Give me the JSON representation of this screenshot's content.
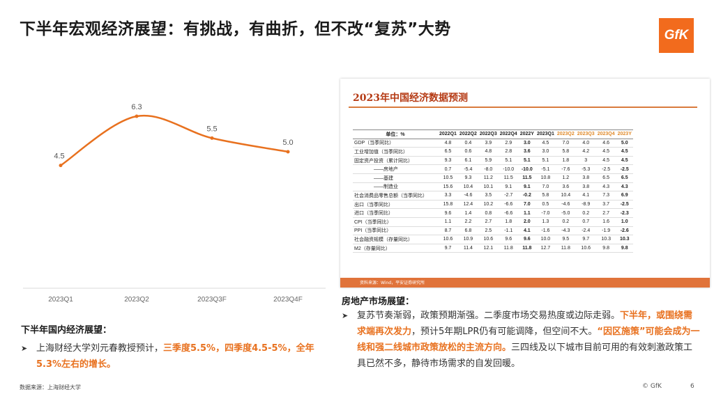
{
  "title": "下半年宏观经济展望：有挑战，有曲折，但不改“复苏”大势",
  "logo": "GfK",
  "chart_data": {
    "type": "line",
    "categories": [
      "2023Q1",
      "2023Q2",
      "2023Q3F",
      "2023Q4F"
    ],
    "values": [
      4.5,
      6.3,
      5.5,
      5.0
    ],
    "color": "#e8711f",
    "ylim": [
      0,
      7.5
    ]
  },
  "left_section": {
    "heading": "下半年国内经济展望：",
    "bullet_plain": "上海财经大学刘元春教授预计，",
    "bullet_highlight": "三季度5.5%，四季度4.5-5%，全年5.3%左右的增长。"
  },
  "table": {
    "title": "2023年中国经济数据预测",
    "headers": [
      "单位：%",
      "2022Q1",
      "2022Q2",
      "2022Q3",
      "2022Q4",
      "2022Y",
      "2023Q1",
      "2023Q2",
      "2023Q3",
      "2023Q4",
      "2023Y"
    ],
    "forecast_color": "#e08a2a",
    "rows": [
      [
        "GDP（当季同比）",
        "4.8",
        "0.4",
        "3.9",
        "2.9",
        "3.0",
        "4.5",
        "7.0",
        "4.0",
        "4.6",
        "5.0"
      ],
      [
        "工业增加值（当季同比）",
        "6.5",
        "0.6",
        "4.8",
        "2.8",
        "3.6",
        "3.0",
        "5.8",
        "4.2",
        "4.5",
        "4.5"
      ],
      [
        "固定资产投资（累计同比）",
        "9.3",
        "6.1",
        "5.9",
        "5.1",
        "5.1",
        "5.1",
        "1.8",
        "3",
        "4.5",
        "4.5"
      ],
      [
        "——房地产",
        "0.7",
        "-5.4",
        "-8.0",
        "-10.0",
        "-10.0",
        "-5.1",
        "-7.6",
        "-5.3",
        "-2.5",
        "-2.5"
      ],
      [
        "——基建",
        "10.5",
        "9.3",
        "11.2",
        "11.5",
        "11.5",
        "10.8",
        "1.2",
        "3.8",
        "6.5",
        "6.5"
      ],
      [
        "——制造业",
        "15.6",
        "10.4",
        "10.1",
        "9.1",
        "9.1",
        "7.0",
        "3.6",
        "3.8",
        "4.3",
        "4.3"
      ],
      [
        "社会消费品零售总额（当季同比）",
        "3.3",
        "-4.6",
        "3.5",
        "-2.7",
        "-0.2",
        "5.8",
        "10.4",
        "4.1",
        "7.3",
        "6.9"
      ],
      [
        "出口（当季同比）",
        "15.8",
        "12.4",
        "10.2",
        "-6.6",
        "7.0",
        "0.5",
        "-4.6",
        "-8.9",
        "3.7",
        "-2.5"
      ],
      [
        "进口（当季同比）",
        "9.6",
        "1.4",
        "0.8",
        "-6.6",
        "1.1",
        "-7.0",
        "-5.0",
        "0.2",
        "2.7",
        "-2.3"
      ],
      [
        "CPI（当季同比）",
        "1.1",
        "2.2",
        "2.7",
        "1.8",
        "2.0",
        "1.3",
        "0.2",
        "0.7",
        "1.6",
        "1.0"
      ],
      [
        "PPI（当季同比）",
        "8.7",
        "6.8",
        "2.5",
        "-1.1",
        "4.1",
        "-1.6",
        "-4.3",
        "-2.4",
        "-1.9",
        "-2.6"
      ],
      [
        "社会融资规模（存量同比）",
        "10.6",
        "10.9",
        "10.6",
        "9.6",
        "9.6",
        "10.0",
        "9.5",
        "9.7",
        "10.3",
        "10.3"
      ],
      [
        "M2（存量同比）",
        "9.7",
        "11.4",
        "12.1",
        "11.8",
        "11.8",
        "12.7",
        "11.8",
        "10.6",
        "9.8",
        "9.8"
      ]
    ],
    "footer": "资料来源：Wind，平安证券研究所"
  },
  "right_section": {
    "heading": "房地产市场展望：",
    "p1": "复苏节奏渐弱，政策预期渐强。二季度市场交易热度或边际走弱。",
    "p2_highlight": "下半年，或围绕需求端再次发力",
    "p3": "，预计5年期LPR仍有可能调降，但空间不大。",
    "p4_highlight": "“因区施策”可能会成为一线和强二线城市政策放松的主流方向。",
    "p5": "三四线及以下城市目前可用的有效刺激政策工具已然不多，静待市场需求的自发回暖。"
  },
  "footer": {
    "source": "数据来源：上海财经大学",
    "copyright": "© GfK",
    "page": "6"
  }
}
